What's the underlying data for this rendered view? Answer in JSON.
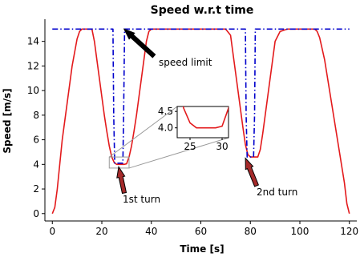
{
  "chart_data": {
    "type": "line",
    "title": "Speed w.r.t time",
    "xlabel": "Time [s]",
    "ylabel": "Speed [m/s]",
    "xlim": [
      -3,
      123
    ],
    "ylim": [
      -0.6,
      15.8
    ],
    "xticks": [
      0,
      20,
      40,
      60,
      80,
      100,
      120
    ],
    "yticks": [
      0,
      2,
      4,
      6,
      8,
      10,
      12,
      14
    ],
    "grid": false,
    "series": [
      {
        "color": "#e31a1c",
        "style": "solid",
        "x": [
          0,
          1,
          2,
          3,
          4,
          6,
          8,
          10,
          11,
          12,
          13,
          14,
          15,
          16,
          17,
          18,
          19,
          20,
          21,
          22,
          23,
          24,
          25,
          26,
          27,
          28,
          29,
          30,
          31,
          32,
          33,
          34,
          35,
          36,
          37,
          38,
          39,
          40,
          42,
          44,
          46,
          48,
          50,
          52,
          54,
          56,
          58,
          60,
          62,
          64,
          66,
          68,
          70,
          72,
          73,
          74,
          75,
          76,
          77,
          78,
          79,
          80,
          81,
          82,
          83,
          84,
          85,
          86,
          87,
          88,
          89,
          90,
          92,
          95,
          100,
          104,
          106,
          107,
          108,
          110,
          112,
          114,
          116,
          118,
          119,
          120
        ],
        "y": [
          0,
          0.5,
          2,
          4,
          6,
          9,
          12,
          14.2,
          14.8,
          15,
          15,
          15,
          15,
          15,
          14,
          12.5,
          11,
          9.5,
          8,
          6.7,
          5.5,
          4.6,
          4.15,
          4.0,
          4.0,
          4.0,
          4.0,
          4.05,
          4.6,
          5.5,
          6.7,
          8,
          9.5,
          11,
          12.5,
          14,
          14.8,
          15,
          15,
          15,
          15,
          15,
          15,
          15,
          15,
          15,
          15,
          15,
          15,
          15,
          15,
          15,
          15,
          14.5,
          13,
          11.5,
          10,
          8.5,
          7,
          5.6,
          4.8,
          4.6,
          4.6,
          4.6,
          4.6,
          5.2,
          6.5,
          8,
          9.5,
          11,
          12.5,
          14,
          14.8,
          15,
          15,
          15,
          15,
          14.8,
          14.3,
          12.5,
          10,
          7.5,
          5,
          2.5,
          0.8,
          0
        ]
      },
      {
        "color": "#0000cc",
        "style": "dashdot",
        "x": [
          0,
          24.5,
          24.8,
          25.2,
          28.5,
          28.8,
          29.2,
          78,
          78.3,
          78.7,
          81.3,
          81.7,
          82,
          120
        ],
        "y": [
          15,
          15,
          8,
          4.1,
          4.1,
          8,
          15,
          15,
          8,
          4.6,
          4.6,
          8,
          15,
          15
        ]
      }
    ],
    "inset": {
      "xlim": [
        23,
        31
      ],
      "ylim": [
        3.7,
        4.65
      ],
      "xticks": [
        25,
        30
      ],
      "yticks": [
        4.0,
        4.5
      ],
      "zoom_box_x": [
        23,
        31
      ],
      "zoom_box_y": [
        3.7,
        4.6
      ]
    },
    "annotations": [
      {
        "text": "speed limit",
        "arrow_to": [
          29,
          15
        ],
        "text_at": [
          35,
          12.4
        ],
        "arrow_color": "#000000"
      },
      {
        "text": "1st turn",
        "arrow_to": [
          26.8,
          3.8
        ],
        "text_at": [
          26,
          1.0
        ],
        "arrow_color": "#a52a2a"
      },
      {
        "text": "2nd turn",
        "arrow_to": [
          78,
          4.5
        ],
        "text_at": [
          89,
          1.6
        ],
        "arrow_color": "#a52a2a"
      }
    ]
  }
}
